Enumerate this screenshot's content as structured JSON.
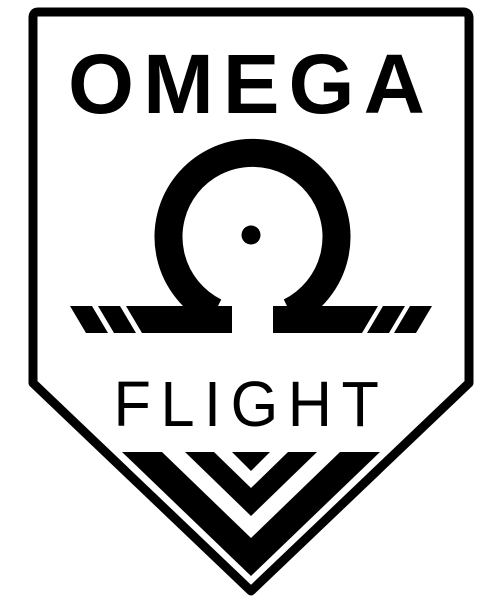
{
  "badge": {
    "top_word": "OMEGA",
    "bottom_word": "FLIGHT",
    "symbol_icon": "omega-icon",
    "chevrons_icon": "chevron-down-icon",
    "colors": {
      "ink": "#000000",
      "paper": "#ffffff"
    }
  }
}
